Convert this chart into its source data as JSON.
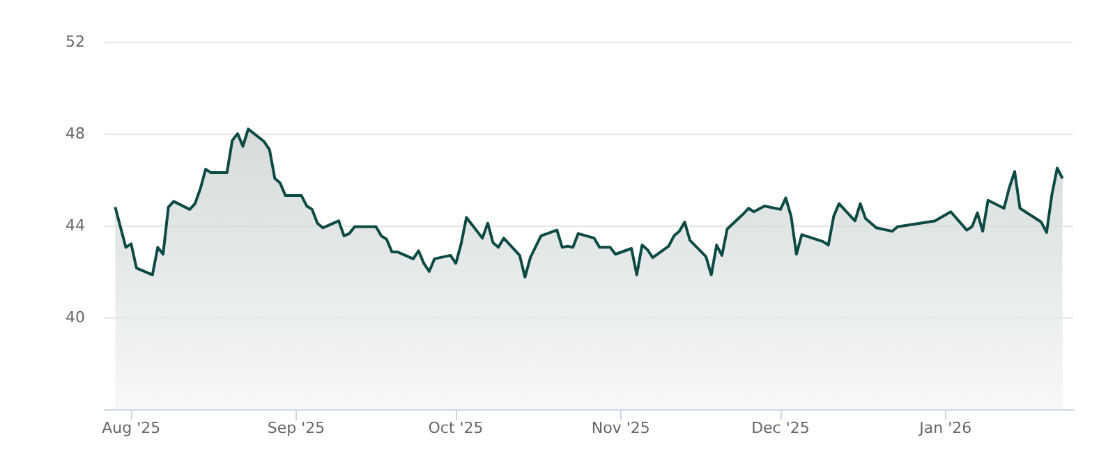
{
  "chart_data": {
    "type": "area",
    "x": [
      "2025-07-29",
      "2025-07-31",
      "2025-08-01",
      "2025-08-02",
      "2025-08-05",
      "2025-08-06",
      "2025-08-07",
      "2025-08-08",
      "2025-08-09",
      "2025-08-12",
      "2025-08-13",
      "2025-08-14",
      "2025-08-15",
      "2025-08-16",
      "2025-08-19",
      "2025-08-20",
      "2025-08-21",
      "2025-08-22",
      "2025-08-23",
      "2025-08-26",
      "2025-08-27",
      "2025-08-28",
      "2025-08-29",
      "2025-08-30",
      "2025-09-02",
      "2025-09-03",
      "2025-09-04",
      "2025-09-05",
      "2025-09-06",
      "2025-09-09",
      "2025-09-10",
      "2025-09-11",
      "2025-09-12",
      "2025-09-16",
      "2025-09-17",
      "2025-09-18",
      "2025-09-19",
      "2025-09-20",
      "2025-09-23",
      "2025-09-24",
      "2025-09-25",
      "2025-09-26",
      "2025-09-27",
      "2025-09-30",
      "2025-10-01",
      "2025-10-02",
      "2025-10-03",
      "2025-10-06",
      "2025-10-07",
      "2025-10-08",
      "2025-10-09",
      "2025-10-10",
      "2025-10-13",
      "2025-10-14",
      "2025-10-15",
      "2025-10-17",
      "2025-10-20",
      "2025-10-21",
      "2025-10-22",
      "2025-10-23",
      "2025-10-24",
      "2025-10-27",
      "2025-10-28",
      "2025-10-30",
      "2025-10-31",
      "2025-11-03",
      "2025-11-04",
      "2025-11-05",
      "2025-11-06",
      "2025-11-07",
      "2025-11-10",
      "2025-11-11",
      "2025-11-12",
      "2025-11-13",
      "2025-11-14",
      "2025-11-17",
      "2025-11-18",
      "2025-11-19",
      "2025-11-20",
      "2025-11-21",
      "2025-11-24",
      "2025-11-25",
      "2025-11-26",
      "2025-11-28",
      "2025-12-01",
      "2025-12-02",
      "2025-12-03",
      "2025-12-04",
      "2025-12-05",
      "2025-12-09",
      "2025-12-10",
      "2025-12-11",
      "2025-12-12",
      "2025-12-15",
      "2025-12-16",
      "2025-12-17",
      "2025-12-19",
      "2025-12-22",
      "2025-12-23",
      "2025-12-30",
      "2026-01-02",
      "2026-01-05",
      "2026-01-06",
      "2026-01-07",
      "2026-01-08",
      "2026-01-09",
      "2026-01-12",
      "2026-01-13",
      "2026-01-14",
      "2026-01-15",
      "2026-01-19",
      "2026-01-20",
      "2026-01-21",
      "2026-01-22",
      "2026-01-23"
    ],
    "series": [
      {
        "color": "#0d4a44",
        "values": [
          44.8,
          43.05,
          43.2,
          42.15,
          41.85,
          43.05,
          42.75,
          44.8,
          45.05,
          44.7,
          44.95,
          45.6,
          46.45,
          46.3,
          46.3,
          47.7,
          48.0,
          47.45,
          48.2,
          47.65,
          47.3,
          46.05,
          45.85,
          45.3,
          45.3,
          44.85,
          44.7,
          44.1,
          43.9,
          44.2,
          43.55,
          43.65,
          43.95,
          43.95,
          43.55,
          43.4,
          42.85,
          42.85,
          42.55,
          42.9,
          42.35,
          42.0,
          42.55,
          42.7,
          42.35,
          43.2,
          44.35,
          43.45,
          44.1,
          43.25,
          43.05,
          43.45,
          42.7,
          41.75,
          42.6,
          43.55,
          43.8,
          43.05,
          43.1,
          43.05,
          43.65,
          43.45,
          43.05,
          43.05,
          42.75,
          43.0,
          41.85,
          43.15,
          42.95,
          42.6,
          43.1,
          43.55,
          43.75,
          44.15,
          43.35,
          42.65,
          41.85,
          43.15,
          42.7,
          43.85,
          44.5,
          44.75,
          44.6,
          44.85,
          44.7,
          45.2,
          44.4,
          42.75,
          43.6,
          43.3,
          43.15,
          44.4,
          44.95,
          44.2,
          44.95,
          44.3,
          43.9,
          43.75,
          43.95,
          44.2,
          44.6,
          43.8,
          43.95,
          44.55,
          43.75,
          45.1,
          44.75,
          45.65,
          46.35,
          44.75,
          44.15,
          43.7,
          45.35,
          46.5,
          46.05
        ]
      }
    ],
    "xlim": [
      "2025-07-27",
      "2026-01-25"
    ],
    "xticks": [
      {
        "value": "2025-08-01",
        "label": "Aug '25"
      },
      {
        "value": "2025-09-01",
        "label": "Sep '25"
      },
      {
        "value": "2025-10-01",
        "label": "Oct '25"
      },
      {
        "value": "2025-11-01",
        "label": "Nov '25"
      },
      {
        "value": "2025-12-01",
        "label": "Dec '25"
      },
      {
        "value": "2026-01-01",
        "label": "Jan '26"
      }
    ],
    "ylim": [
      36,
      52
    ],
    "yticks": [
      40,
      44,
      48,
      52
    ],
    "grid": "y"
  }
}
